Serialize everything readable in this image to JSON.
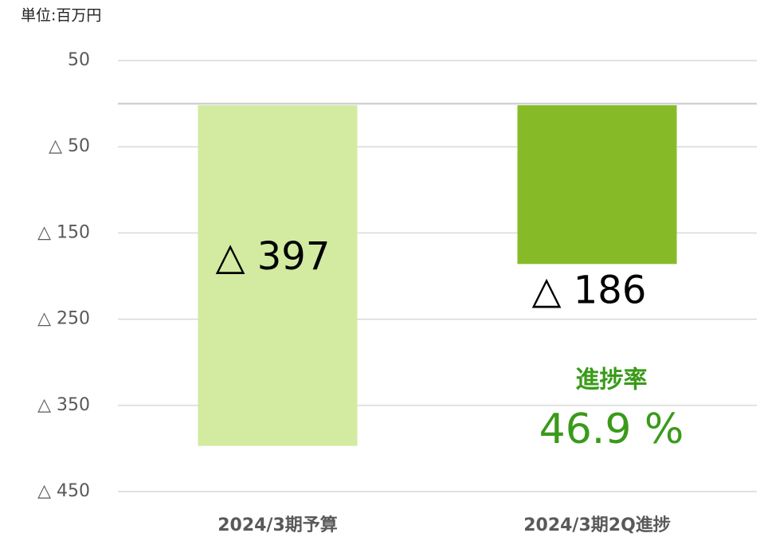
{
  "chart_data": {
    "type": "bar",
    "unit_label": "単位:百万円",
    "categories": [
      "2024/3期予算",
      "2024/3期2Q進捗"
    ],
    "values": [
      -397,
      -186
    ],
    "value_labels": [
      "△ 397",
      "△ 186"
    ],
    "colors": [
      "#d2eba0",
      "#86bb27"
    ],
    "ylim": [
      50,
      -450
    ],
    "yticks": [
      50,
      {
        "value": -50,
        "label": "△ 50"
      },
      {
        "value": -150,
        "label": "△ 150"
      },
      {
        "value": -250,
        "label": "△ 250"
      },
      {
        "value": -350,
        "label": "△ 350"
      },
      {
        "value": -450,
        "label": "△ 450"
      }
    ],
    "grid": true,
    "annotations": [
      {
        "text": "進捗率",
        "color": "#3a9a1a"
      },
      {
        "text": "46.9 %",
        "color": "#3a9a1a"
      }
    ]
  }
}
